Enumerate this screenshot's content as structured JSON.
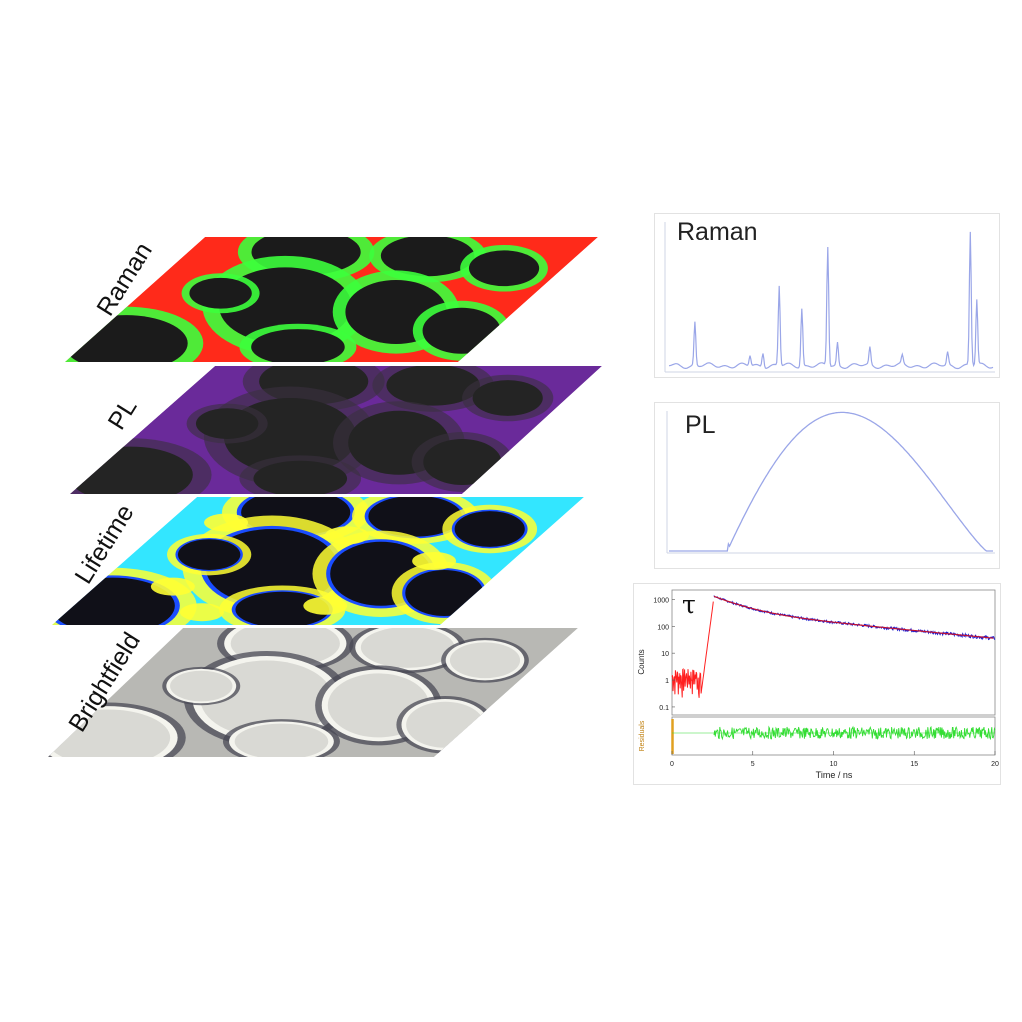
{
  "figure": {
    "stack_layers": [
      {
        "id": "raman",
        "label": "Raman",
        "colors": {
          "base": "#1b1b1b",
          "fill": "#ff2a1a",
          "ring": "#3cff3c"
        }
      },
      {
        "id": "pl",
        "label": "PL",
        "colors": {
          "base": "#242424",
          "fill": "#6a2a9a",
          "ring": "#8e4fc4"
        }
      },
      {
        "id": "lifetime",
        "label": "Lifetime",
        "colors": {
          "base": "#101018",
          "fill": "#33e6ff",
          "ring": "#ffff33",
          "edge": "#1a4dff"
        }
      },
      {
        "id": "brightfield",
        "label": "Brightfield",
        "colors": {
          "base": "#d9d9d4",
          "fill": "#b8b8b4",
          "ring": "#4a4a55"
        }
      }
    ],
    "raman_panel": {
      "title": "Raman",
      "line_color": "#9aa6e8"
    },
    "pl_panel": {
      "title": "PL",
      "line_color": "#9aa6e8"
    },
    "lifetime_panel": {
      "title": "τ",
      "ylabel": "Counts",
      "residuals_label": "Residuals",
      "xlabel": "Time / ns",
      "yticks": [
        "1000",
        "100",
        "10",
        "1",
        "0.1"
      ],
      "xticks": [
        "0",
        "5",
        "10",
        "15",
        "20"
      ],
      "colors": {
        "rise": "#ff2020",
        "fit": "#c01030",
        "decay": "#1a1ad0",
        "residuals": "#33dd33",
        "residual_axis": "#e0a020"
      }
    }
  }
}
